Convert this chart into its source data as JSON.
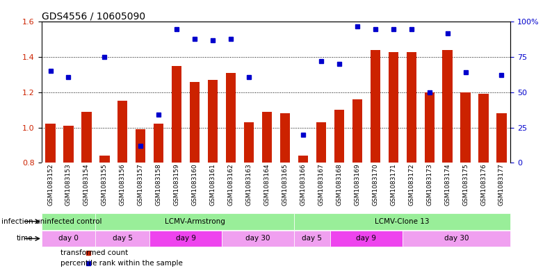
{
  "title": "GDS4556 / 10605090",
  "samples": [
    "GSM1083152",
    "GSM1083153",
    "GSM1083154",
    "GSM1083155",
    "GSM1083156",
    "GSM1083157",
    "GSM1083158",
    "GSM1083159",
    "GSM1083160",
    "GSM1083161",
    "GSM1083162",
    "GSM1083163",
    "GSM1083164",
    "GSM1083165",
    "GSM1083166",
    "GSM1083167",
    "GSM1083168",
    "GSM1083169",
    "GSM1083170",
    "GSM1083171",
    "GSM1083172",
    "GSM1083173",
    "GSM1083174",
    "GSM1083175",
    "GSM1083176",
    "GSM1083177"
  ],
  "bar_values": [
    1.02,
    1.01,
    1.09,
    0.84,
    1.15,
    0.99,
    1.02,
    1.35,
    1.26,
    1.27,
    1.31,
    1.03,
    1.09,
    1.08,
    0.84,
    1.03,
    1.1,
    1.16,
    1.44,
    1.43,
    1.43,
    1.2,
    1.44,
    1.2,
    1.19,
    1.08
  ],
  "dot_values_pct": [
    65,
    61,
    null,
    75,
    null,
    12,
    34,
    95,
    88,
    87,
    88,
    61,
    null,
    null,
    20,
    72,
    70,
    97,
    95,
    95,
    95,
    50,
    92,
    64,
    null,
    62
  ],
  "bar_color": "#cc2200",
  "dot_color": "#0000cc",
  "ylim_left": [
    0.8,
    1.6
  ],
  "ylim_right": [
    0,
    100
  ],
  "yticks_left": [
    0.8,
    1.0,
    1.2,
    1.4,
    1.6
  ],
  "yticks_right": [
    0,
    25,
    50,
    75,
    100
  ],
  "ytick_labels_right": [
    "0",
    "25",
    "50",
    "75",
    "100%"
  ],
  "infection_groups": [
    {
      "label": "uninfected control",
      "start": 0,
      "end": 3,
      "color": "#99ee99"
    },
    {
      "label": "LCMV-Armstrong",
      "start": 3,
      "end": 14,
      "color": "#99ee99"
    },
    {
      "label": "LCMV-Clone 13",
      "start": 14,
      "end": 26,
      "color": "#99ee99"
    }
  ],
  "time_groups": [
    {
      "label": "day 0",
      "start": 0,
      "end": 3,
      "color": "#f0a0f0"
    },
    {
      "label": "day 5",
      "start": 3,
      "end": 6,
      "color": "#f0a0f0"
    },
    {
      "label": "day 9",
      "start": 6,
      "end": 10,
      "color": "#ee44ee"
    },
    {
      "label": "day 30",
      "start": 10,
      "end": 14,
      "color": "#f0a0f0"
    },
    {
      "label": "day 5",
      "start": 14,
      "end": 16,
      "color": "#f0a0f0"
    },
    {
      "label": "day 9",
      "start": 16,
      "end": 20,
      "color": "#ee44ee"
    },
    {
      "label": "day 30",
      "start": 20,
      "end": 26,
      "color": "#f0a0f0"
    }
  ],
  "legend_bar_label": "transformed count",
  "legend_dot_label": "percentile rank within the sample",
  "label_infection": "infection",
  "label_time": "time",
  "tick_label_fontsize": 6.5,
  "bar_width": 0.55
}
